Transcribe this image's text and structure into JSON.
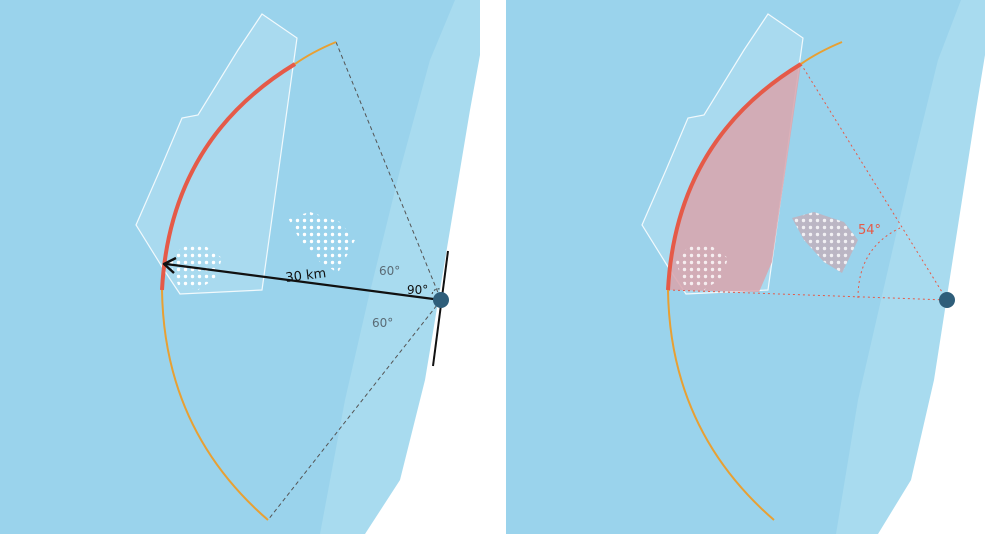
{
  "left_panel": {
    "distance_label": "30 km",
    "angle_upper_label": "60°",
    "angle_right_label": "90°",
    "angle_lower_label": "60°"
  },
  "right_panel": {
    "angle_label": "54°"
  },
  "colors": {
    "sea": "#9ad3ec",
    "coast": "#aee1f2",
    "land": "#ffffff",
    "arc_visible": "#e55a48",
    "arc_far": "#e8a033",
    "observer": "#2f5e7a",
    "wind_farm_outline": "#ffffff",
    "shaded_region": "#d9a3ab"
  }
}
